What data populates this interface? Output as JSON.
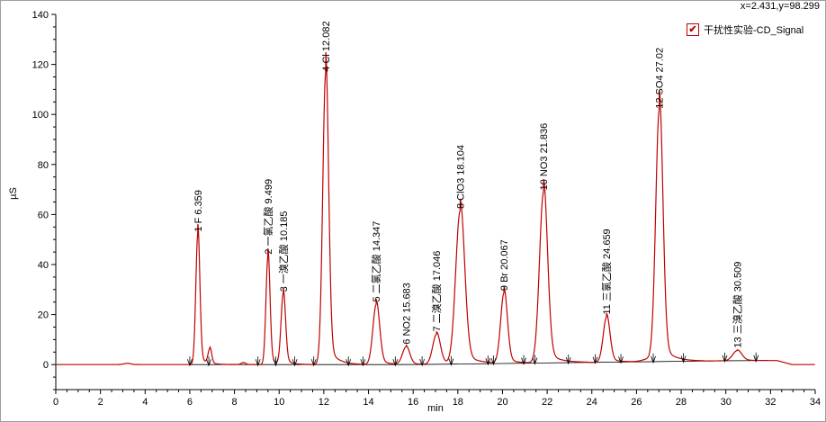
{
  "readout": "x=2.431,y=98.299",
  "legend": {
    "label": "干扰性实验-CD_Signal",
    "check": "✔",
    "color": "#c00000"
  },
  "chart_data": {
    "type": "line",
    "xlabel": "min",
    "ylabel": "µS",
    "xlim": [
      0,
      34
    ],
    "ylim": [
      -10,
      140
    ],
    "xticks": [
      0,
      2,
      4,
      6,
      8,
      10,
      12,
      14,
      16,
      18,
      20,
      22,
      24,
      26,
      28,
      30,
      32,
      34
    ],
    "yticks": [
      0,
      20,
      40,
      60,
      80,
      100,
      120,
      140
    ],
    "series": [
      {
        "name": "干扰性实验-CD_Signal",
        "color": "#c00000"
      }
    ],
    "peaks": [
      {
        "label": "1 F 6.359",
        "rt": 6.359,
        "height": 52,
        "width": 0.09
      },
      {
        "label": "2 一氯乙酸 9.499",
        "rt": 9.499,
        "height": 43,
        "width": 0.09
      },
      {
        "label": "3 一溴乙酸 10.185",
        "rt": 10.185,
        "height": 28,
        "width": 0.1
      },
      {
        "label": "4 Cl 12.082",
        "rt": 12.082,
        "height": 116,
        "width": 0.13
      },
      {
        "label": "5 二氯乙酸 14.347",
        "rt": 14.347,
        "height": 24,
        "width": 0.15
      },
      {
        "label": "6 NO2 15.683",
        "rt": 15.683,
        "height": 7,
        "width": 0.16
      },
      {
        "label": "7 二溴乙酸 17.046",
        "rt": 17.046,
        "height": 12,
        "width": 0.17
      },
      {
        "label": "8 ClO3 18.104",
        "rt": 18.104,
        "height": 61,
        "width": 0.2
      },
      {
        "label": "9 Br 20.067",
        "rt": 20.067,
        "height": 28,
        "width": 0.15
      },
      {
        "label": "10 NO3 21.836",
        "rt": 21.836,
        "height": 68,
        "width": 0.18
      },
      {
        "label": "11 三氯乙酸 24.659",
        "rt": 24.659,
        "height": 18,
        "width": 0.15
      },
      {
        "label": "12 SO4 27.02",
        "rt": 27.02,
        "height": 100,
        "width": 0.16
      },
      {
        "label": "13 三溴乙酸 30.509",
        "rt": 30.509,
        "height": 4,
        "width": 0.2
      }
    ],
    "minor_peaks": [
      {
        "rt": 6.9,
        "height": 6,
        "width": 0.08
      },
      {
        "rt": 8.4,
        "height": 0.8,
        "width": 0.1
      },
      {
        "rt": 3.2,
        "height": 0.5,
        "width": 0.15
      },
      {
        "rt": 26.6,
        "height": 1.2,
        "width": 0.3
      }
    ],
    "baseline_markers": [
      6.0,
      6.85,
      9.05,
      9.85,
      10.7,
      11.55,
      13.1,
      13.75,
      15.2,
      16.4,
      17.7,
      19.35,
      19.6,
      20.95,
      21.45,
      22.95,
      24.15,
      25.3,
      26.75,
      28.1,
      29.95,
      31.35
    ]
  }
}
